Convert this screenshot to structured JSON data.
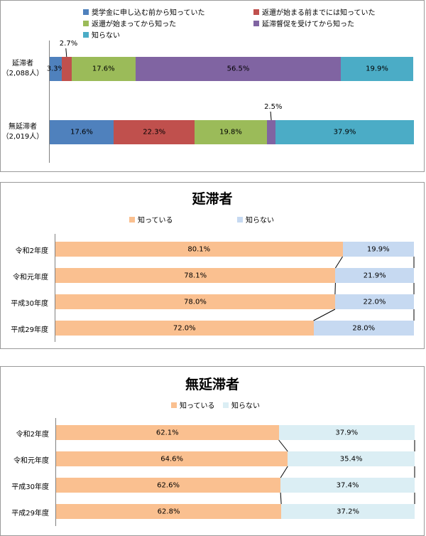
{
  "chart_data": [
    {
      "type": "bar",
      "stacked": true,
      "orientation": "horizontal",
      "title": "",
      "legend": [
        "奨学金に申し込む前から知っていた",
        "返還が始まる前までには知っていた",
        "返還が始まってから知った",
        "延滞督促を受けてから知った",
        "知らない"
      ],
      "colors": [
        "#4F81BD",
        "#C0504D",
        "#9BBB59",
        "#8064A2",
        "#4BACC6"
      ],
      "categories": [
        {
          "name": "延滞者",
          "n": "（2,088人）"
        },
        {
          "name": "無延滞者",
          "n": "（2,019人）"
        }
      ],
      "values": [
        [
          3.3,
          2.7,
          17.6,
          56.5,
          19.9
        ],
        [
          17.6,
          22.3,
          19.8,
          2.5,
          37.9
        ]
      ],
      "labels": [
        [
          "3.3%",
          "2.7%",
          "17.6%",
          "56.5%",
          "19.9%"
        ],
        [
          "17.6%",
          "22.3%",
          "19.8%",
          "2.5%",
          "37.9%"
        ]
      ],
      "xlim": [
        0,
        100
      ]
    },
    {
      "type": "bar",
      "stacked": true,
      "orientation": "horizontal",
      "title": "延滞者",
      "legend": [
        "知っている",
        "知らない"
      ],
      "colors": [
        "#FAC090",
        "#C6D9F1"
      ],
      "categories": [
        "令和2年度",
        "令和元年度",
        "平成30年度",
        "平成29年度"
      ],
      "values": [
        [
          80.1,
          19.9
        ],
        [
          78.1,
          21.9
        ],
        [
          78.0,
          22.0
        ],
        [
          72.0,
          28.0
        ]
      ],
      "labels": [
        [
          "80.1%",
          "19.9%"
        ],
        [
          "78.1%",
          "21.9%"
        ],
        [
          "78.0%",
          "22.0%"
        ],
        [
          "72.0%",
          "28.0%"
        ]
      ],
      "xlim": [
        0,
        100
      ]
    },
    {
      "type": "bar",
      "stacked": true,
      "orientation": "horizontal",
      "title": "無延滞者",
      "legend": [
        "知っている",
        "知らない"
      ],
      "colors": [
        "#FAC090",
        "#DBEEF4"
      ],
      "categories": [
        "令和2年度",
        "令和元年度",
        "平成30年度",
        "平成29年度"
      ],
      "values": [
        [
          62.1,
          37.9
        ],
        [
          64.6,
          35.4
        ],
        [
          62.6,
          37.4
        ],
        [
          62.8,
          37.2
        ]
      ],
      "labels": [
        [
          "62.1%",
          "37.9%"
        ],
        [
          "64.6%",
          "35.4%"
        ],
        [
          "62.6%",
          "37.4%"
        ],
        [
          "62.8%",
          "37.2%"
        ]
      ],
      "xlim": [
        0,
        100
      ]
    }
  ]
}
